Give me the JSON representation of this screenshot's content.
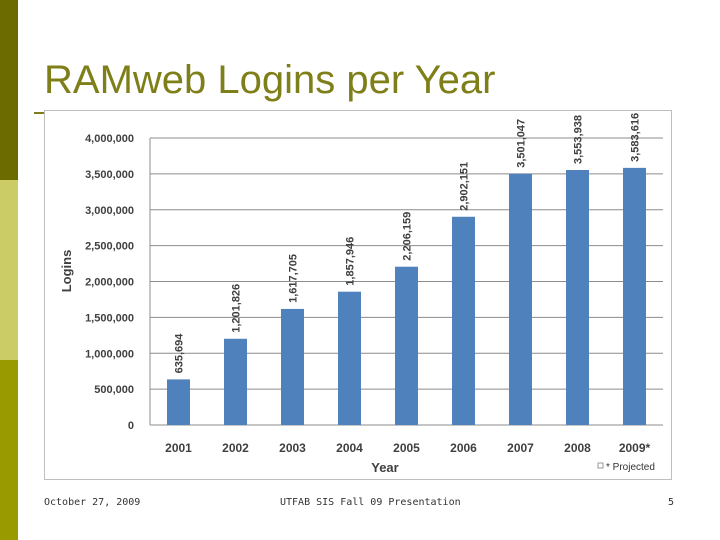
{
  "slide": {
    "title": "RAMweb Logins per Year",
    "footer_date": "October 27, 2009",
    "footer_center": "UTFAB SIS Fall 09  Presentation",
    "page_number": "5",
    "colors": {
      "title": "#7f7f1a",
      "bar": "#4f81bd",
      "sidebar_top": "#6b6b00",
      "sidebar_mid": "#cccc66",
      "sidebar_bottom": "#999900"
    }
  },
  "chart_data": {
    "type": "bar",
    "title": "",
    "xlabel": "Year",
    "ylabel": "Logins",
    "ylim": [
      0,
      4000000
    ],
    "yticks": [
      0,
      500000,
      1000000,
      1500000,
      2000000,
      2500000,
      3000000,
      3500000,
      4000000
    ],
    "ytick_labels": [
      "0",
      "500,000",
      "1,000,000",
      "1,500,000",
      "2,000,000",
      "2,500,000",
      "3,000,000",
      "3,500,000",
      "4,000,000"
    ],
    "categories": [
      "2001",
      "2002",
      "2003",
      "2004",
      "2005",
      "2006",
      "2007",
      "2008",
      "2009*"
    ],
    "values": [
      635694,
      1201826,
      1617705,
      1857946,
      2206159,
      2902151,
      3501047,
      3553938,
      3583616
    ],
    "data_labels": [
      "635,694",
      "1,201,826",
      "1,617,705",
      "1,857,946",
      "2,206,159",
      "2,902,151",
      "3,501,047",
      "3,553,938",
      "3,583,616"
    ],
    "grid": true,
    "legend_position": "bottom-right",
    "legend_text": "* Projected"
  }
}
